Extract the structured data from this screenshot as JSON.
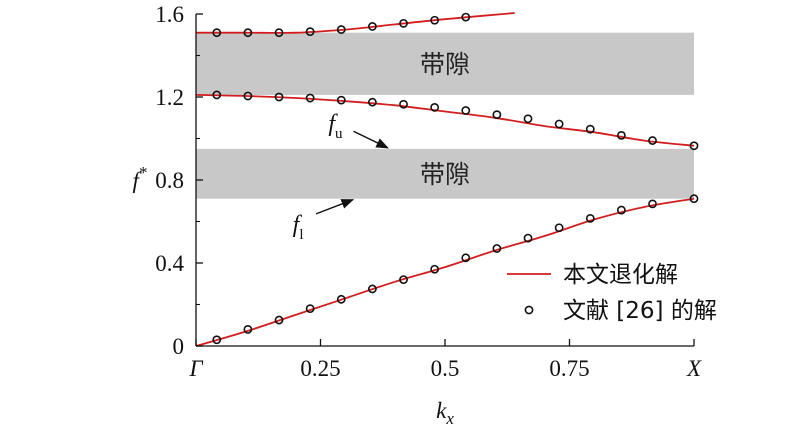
{
  "chart_data": {
    "type": "line",
    "xlabel": "k",
    "xlabel_sub": "x",
    "ylabel": "f",
    "ylabel_sup": "*",
    "xlim": [
      0,
      1
    ],
    "ylim": [
      0,
      1.6
    ],
    "xticks": [
      {
        "value": 0,
        "label": "Γ",
        "italic": true
      },
      {
        "value": 0.25,
        "label": "0.25",
        "italic": false
      },
      {
        "value": 0.5,
        "label": "0.5",
        "italic": false
      },
      {
        "value": 0.75,
        "label": "0.75",
        "italic": false
      },
      {
        "value": 1,
        "label": "X",
        "italic": true
      }
    ],
    "yticks": [
      {
        "value": 0,
        "label": "0"
      },
      {
        "value": 0.4,
        "label": "0.4"
      },
      {
        "value": 0.8,
        "label": "0.8"
      },
      {
        "value": 1.2,
        "label": "1.2"
      },
      {
        "value": 1.6,
        "label": "1.6"
      }
    ],
    "bands": [
      {
        "ymin": 1.21,
        "ymax": 1.51,
        "label": "带隙",
        "color": "#c8c8c8"
      },
      {
        "ymin": 0.71,
        "ymax": 0.95,
        "label": "带隙",
        "color": "#c8c8c8"
      }
    ],
    "line_color": "#d21e1e",
    "series": [
      {
        "name": "本文退化解",
        "kind": "line",
        "curves": [
          {
            "x": [
              0,
              0.1,
              0.2,
              0.3,
              0.4,
              0.5,
              0.6,
              0.7,
              0.8,
              0.9,
              1.0
            ],
            "y": [
              0,
              0.07,
              0.15,
              0.23,
              0.31,
              0.38,
              0.46,
              0.53,
              0.61,
              0.67,
              0.71
            ]
          },
          {
            "x": [
              0,
              0.1,
              0.2,
              0.3,
              0.4,
              0.5,
              0.6,
              0.7,
              0.8,
              0.9,
              1.0
            ],
            "y": [
              1.21,
              1.205,
              1.195,
              1.18,
              1.16,
              1.13,
              1.1,
              1.06,
              1.03,
              0.99,
              0.965
            ]
          },
          {
            "x": [
              0,
              0.1,
              0.2,
              0.3,
              0.4,
              0.5,
              0.64
            ],
            "y": [
              1.51,
              1.51,
              1.51,
              1.525,
              1.55,
              1.575,
              1.605
            ]
          }
        ]
      },
      {
        "name": "文献 [26] 的解",
        "kind": "markers",
        "curves": [
          {
            "x": [
              0.0417,
              0.1042,
              0.1667,
              0.2292,
              0.2917,
              0.3542,
              0.4167,
              0.4792,
              0.5417,
              0.6042,
              0.6667,
              0.7292,
              0.7917,
              0.8542,
              0.9167,
              1.0
            ],
            "y": [
              0.03,
              0.08,
              0.125,
              0.18,
              0.225,
              0.275,
              0.32,
              0.37,
              0.425,
              0.47,
              0.52,
              0.57,
              0.615,
              0.655,
              0.685,
              0.71
            ]
          },
          {
            "x": [
              0.0417,
              0.1042,
              0.1667,
              0.2292,
              0.2917,
              0.3542,
              0.4167,
              0.4792,
              0.5417,
              0.6042,
              0.6667,
              0.7292,
              0.7917,
              0.8542,
              0.9167,
              1.0
            ],
            "y": [
              1.21,
              1.205,
              1.2,
              1.195,
              1.185,
              1.175,
              1.165,
              1.15,
              1.135,
              1.115,
              1.095,
              1.07,
              1.045,
              1.015,
              0.99,
              0.965
            ]
          },
          {
            "x": [
              0.0417,
              0.1042,
              0.1667,
              0.2292,
              0.2917,
              0.3542,
              0.4167,
              0.4792,
              0.5417
            ],
            "y": [
              1.51,
              1.51,
              1.51,
              1.515,
              1.525,
              1.54,
              1.555,
              1.57,
              1.585
            ]
          }
        ]
      }
    ],
    "annotations": [
      {
        "text": "f",
        "sub": "u",
        "text_x": 0.28,
        "text_y": 1.035,
        "arrow_to_x": 0.385,
        "arrow_to_y": 0.955
      },
      {
        "text": "f",
        "sub": "l",
        "text_x": 0.205,
        "text_y": 0.55,
        "arrow_to_x": 0.315,
        "arrow_to_y": 0.705
      }
    ],
    "legend_position": "lower-right"
  }
}
